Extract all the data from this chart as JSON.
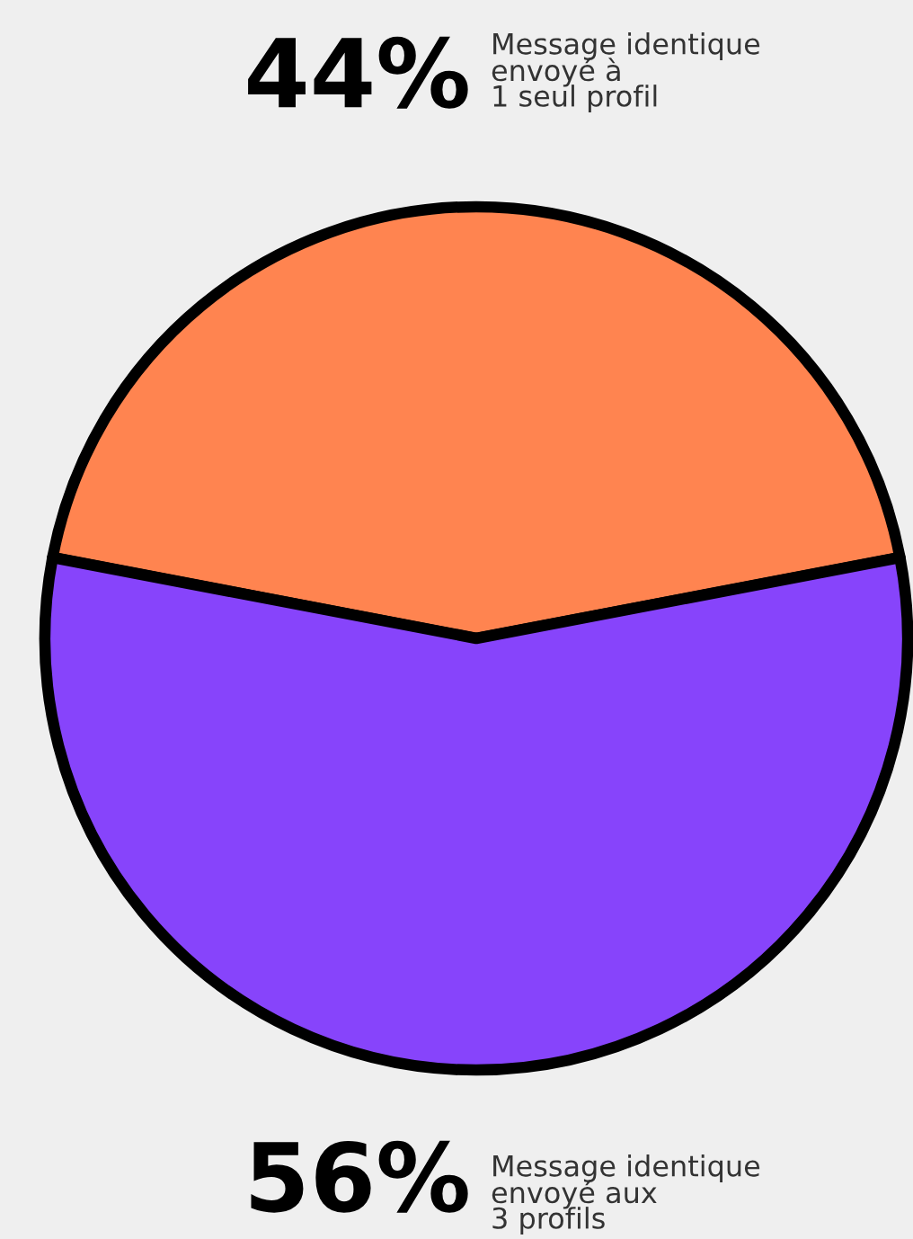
{
  "chart_data": {
    "type": "pie",
    "categories": [
      "Message identique\nenvoyé à\n1 seul profil",
      "Message identique\nenvoyé aux\n3 profils"
    ],
    "values": [
      44,
      56
    ],
    "value_labels": [
      "44%",
      "56%"
    ],
    "colors": [
      "#ff8450",
      "#8744fb"
    ]
  }
}
